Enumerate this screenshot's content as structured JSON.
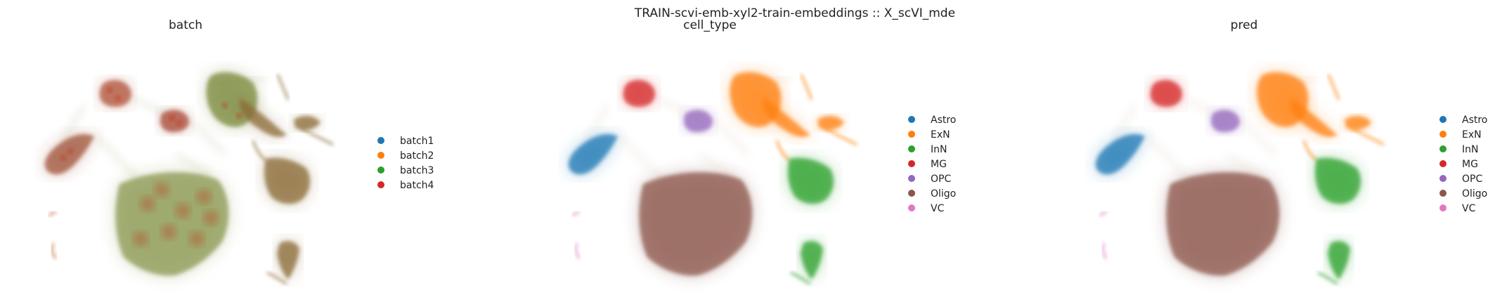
{
  "figure": {
    "title": "TRAIN-scvi-emb-xyl2-train-embeddings :: X_scVI_mde"
  },
  "chart_data": [
    {
      "type": "scatter",
      "title": "batch",
      "xlabel": "",
      "ylabel": "",
      "grid": false,
      "axes": "off",
      "legend_position": "right",
      "legend": [
        {
          "label": "batch1",
          "color": "#1f77b4"
        },
        {
          "label": "batch2",
          "color": "#ff7f0e"
        },
        {
          "label": "batch3",
          "color": "#2ca02c"
        },
        {
          "label": "batch4",
          "color": "#d62728"
        }
      ]
    },
    {
      "type": "scatter",
      "title": "cell_type",
      "xlabel": "",
      "ylabel": "",
      "grid": false,
      "axes": "off",
      "legend_position": "right",
      "legend": [
        {
          "label": "Astro",
          "color": "#1f77b4"
        },
        {
          "label": "ExN",
          "color": "#ff7f0e"
        },
        {
          "label": "InN",
          "color": "#2ca02c"
        },
        {
          "label": "MG",
          "color": "#d62728"
        },
        {
          "label": "OPC",
          "color": "#9467bd"
        },
        {
          "label": "Oligo",
          "color": "#8c564b"
        },
        {
          "label": "VC",
          "color": "#e377c2"
        }
      ]
    },
    {
      "type": "scatter",
      "title": "pred",
      "xlabel": "",
      "ylabel": "",
      "grid": false,
      "axes": "off",
      "legend_position": "right",
      "legend": [
        {
          "label": "Astro",
          "color": "#1f77b4"
        },
        {
          "label": "ExN",
          "color": "#ff7f0e"
        },
        {
          "label": "InN",
          "color": "#2ca02c"
        },
        {
          "label": "MG",
          "color": "#d62728"
        },
        {
          "label": "OPC",
          "color": "#9467bd"
        },
        {
          "label": "Oligo",
          "color": "#8c564b"
        },
        {
          "label": "VC",
          "color": "#e377c2"
        }
      ]
    }
  ]
}
